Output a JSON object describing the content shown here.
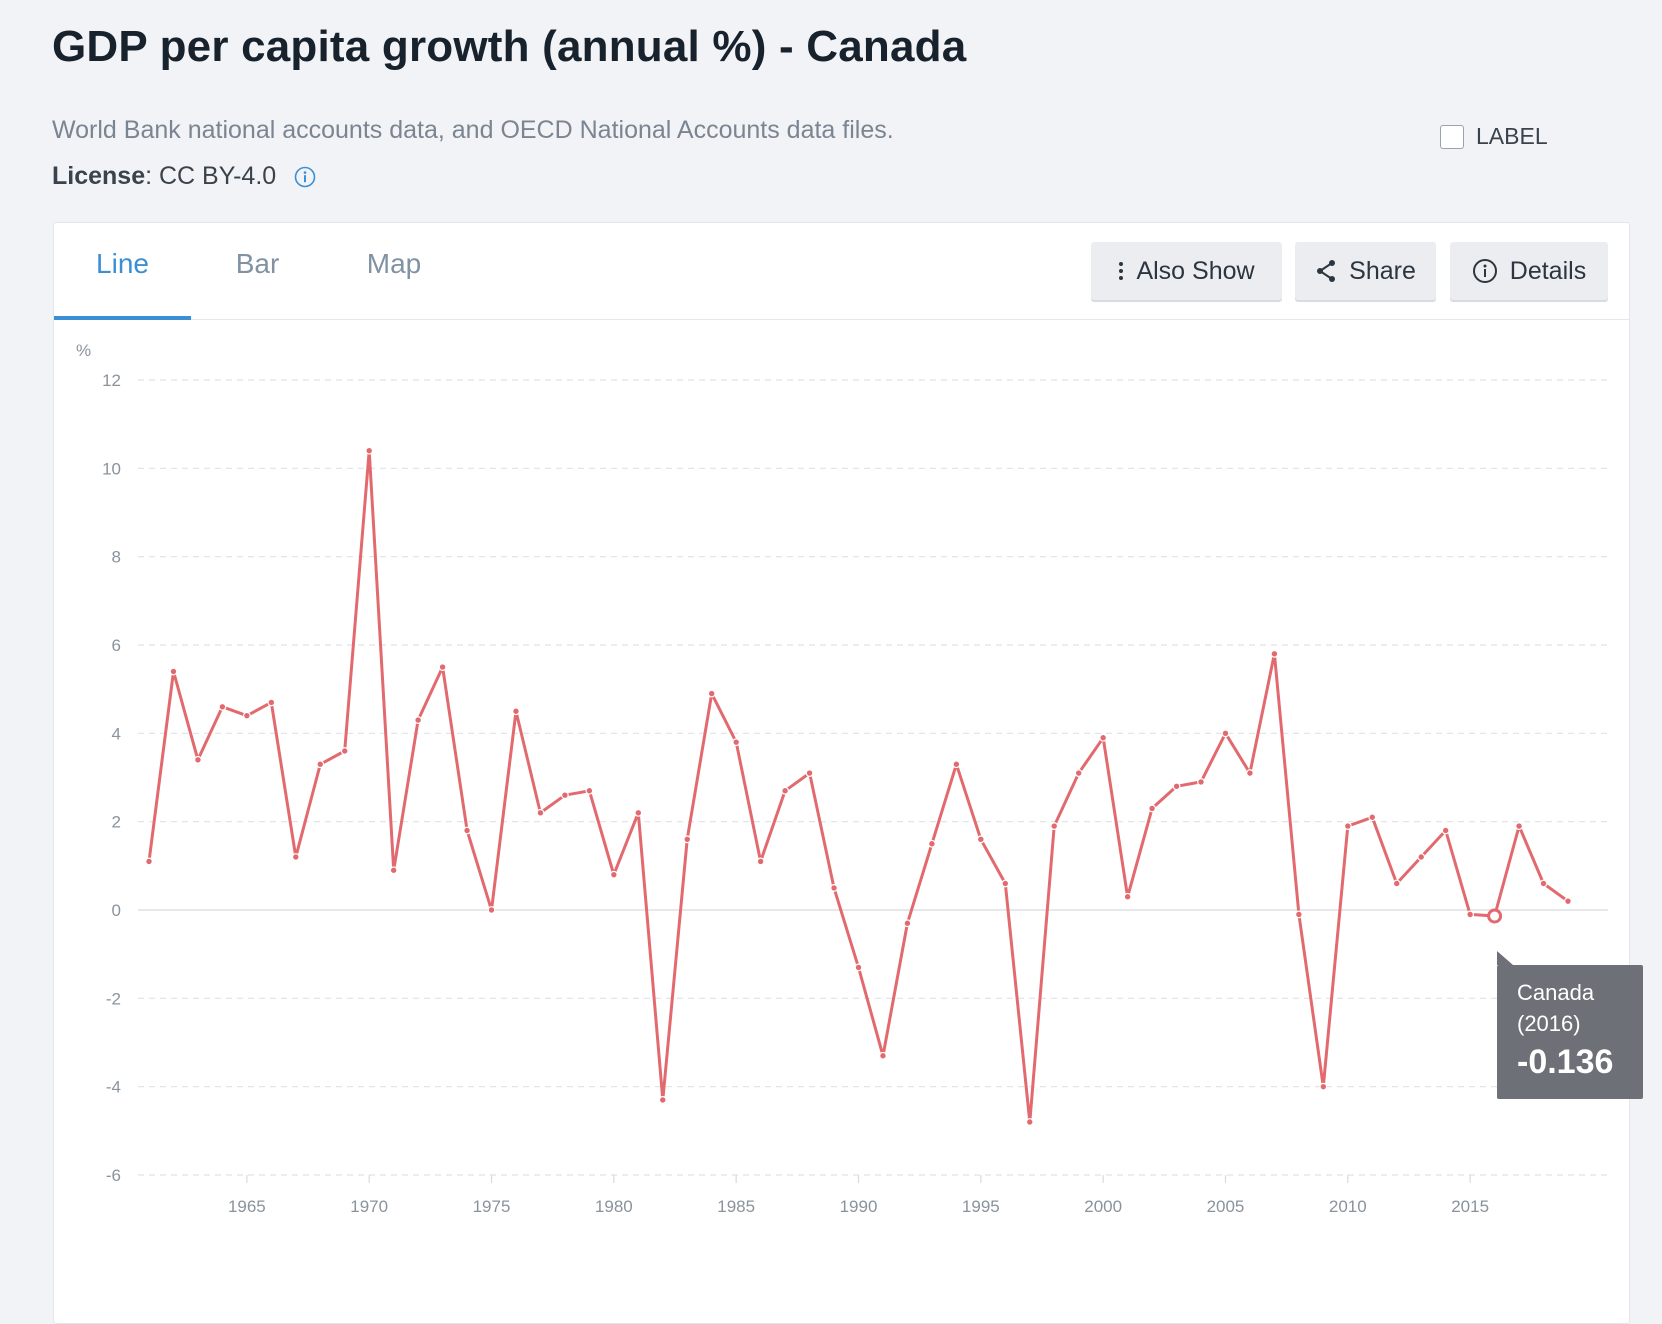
{
  "header": {
    "title": "GDP per capita growth (annual %) - Canada",
    "source": "World Bank national accounts data, and OECD National Accounts data files.",
    "license_label": "License",
    "license_value": " : CC BY-4.0"
  },
  "tabs": [
    {
      "label": "Line",
      "active": true
    },
    {
      "label": "Bar",
      "active": false
    },
    {
      "label": "Map",
      "active": false
    }
  ],
  "toolbar": {
    "also_show": "Also Show",
    "share": "Share",
    "details": "Details"
  },
  "label_toggle": {
    "text": "LABEL",
    "checked": false
  },
  "tooltip": {
    "country": "Canada",
    "year": "(2016)",
    "value": "-0.136"
  },
  "colors": {
    "series": "#e26a6f",
    "accent": "#3b8fd4",
    "tooltip_bg": "#6d7076"
  },
  "chart_data": {
    "type": "line",
    "title": "",
    "ylabel": "%",
    "xlabel": "",
    "ylim": [
      -6,
      12
    ],
    "yticks": [
      12,
      10,
      8,
      6,
      4,
      2,
      0,
      -2,
      -4,
      -6
    ],
    "xlim": [
      1961,
      2019
    ],
    "xticks": [
      1965,
      1970,
      1975,
      1980,
      1985,
      1990,
      1995,
      2000,
      2005,
      2010,
      2015
    ],
    "grid": true,
    "series": [
      {
        "name": "Canada",
        "x": [
          1961,
          1962,
          1963,
          1964,
          1965,
          1966,
          1967,
          1968,
          1969,
          1970,
          1971,
          1972,
          1973,
          1974,
          1975,
          1976,
          1977,
          1978,
          1979,
          1980,
          1981,
          1982,
          1983,
          1984,
          1985,
          1986,
          1987,
          1988,
          1989,
          1990,
          1991,
          1992,
          1993,
          1994,
          1995,
          1996,
          1997,
          1998,
          1999,
          2000,
          2001,
          2002,
          2003,
          2004,
          2005,
          2006,
          2007,
          2008,
          2009,
          2010,
          2011,
          2012,
          2013,
          2014,
          2015,
          2016,
          2017,
          2018,
          2019
        ],
        "values": [
          1.1,
          5.4,
          3.4,
          4.6,
          4.4,
          4.7,
          1.2,
          3.3,
          3.6,
          10.4,
          0.9,
          4.3,
          5.5,
          1.8,
          0.0,
          4.5,
          2.2,
          2.6,
          2.7,
          0.8,
          2.2,
          -4.3,
          1.6,
          4.9,
          3.8,
          1.1,
          2.7,
          3.1,
          0.5,
          -1.3,
          -3.3,
          -0.3,
          1.5,
          3.3,
          1.6,
          0.6,
          -4.8,
          1.9,
          3.1,
          3.9,
          0.3,
          2.3,
          2.8,
          2.9,
          4.0,
          3.1,
          5.8,
          -0.1,
          -4.0,
          1.9,
          2.1,
          0.6,
          1.2,
          1.8,
          -0.1,
          -0.136,
          1.9,
          0.6,
          0.2
        ]
      }
    ],
    "highlight": {
      "x": 2016,
      "y": -0.136
    }
  }
}
